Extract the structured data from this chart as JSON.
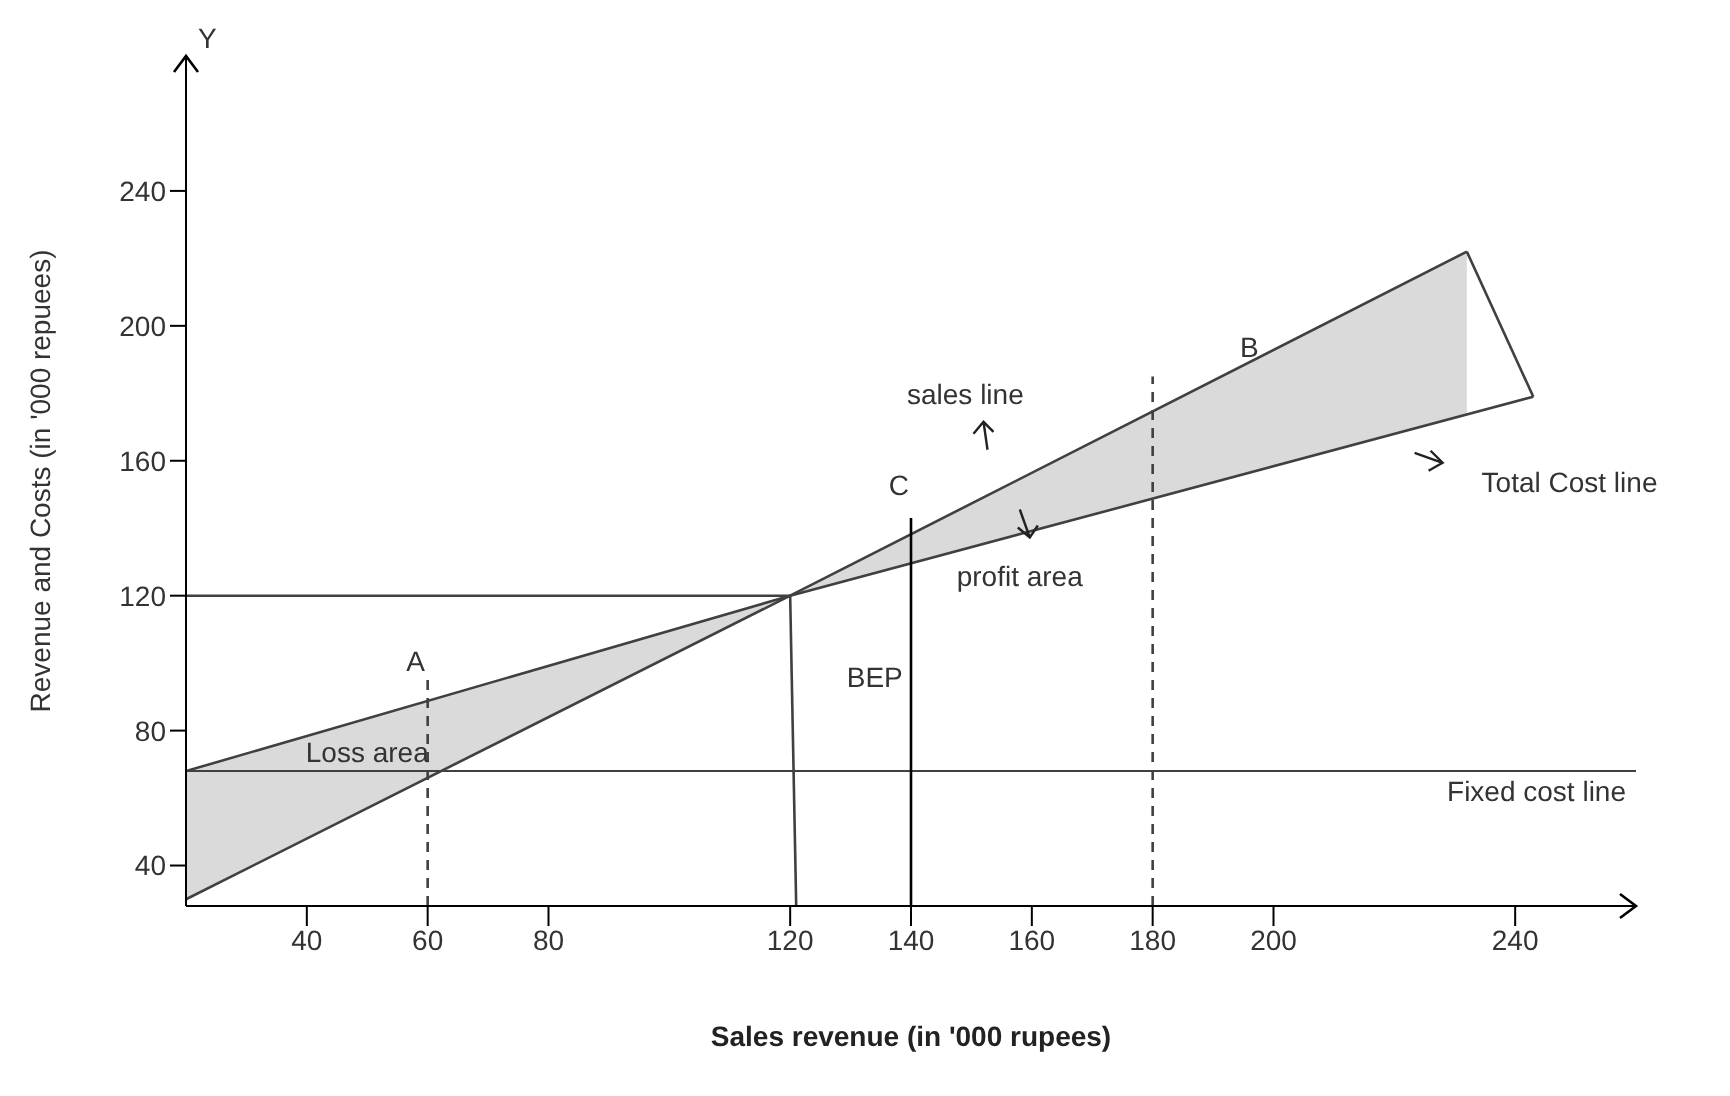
{
  "chart_data": {
    "type": "line",
    "xlabel": "Sales revenue (in '000 rupees)",
    "ylabel": "Revenue and Costs (in '000 repuees)",
    "xlim": [
      20,
      260
    ],
    "ylim": [
      28,
      280
    ],
    "xticks": [
      40,
      60,
      80,
      120,
      140,
      160,
      180,
      200,
      240
    ],
    "yticks": [
      40,
      80,
      120,
      160,
      200,
      240
    ],
    "marker": "none",
    "series": [
      {
        "color": "#404040",
        "x": [
          20,
          120,
          232
        ],
        "values": [
          30,
          120,
          222
        ],
        "lower": [
          68,
          120,
          174
        ],
        "upper": [
          30,
          120,
          222
        ]
      },
      {
        "color": "#404040",
        "x": [
          232,
          243
        ],
        "values": [
          222,
          179
        ]
      },
      {
        "color": "#404040",
        "x": [
          20,
          120,
          243
        ],
        "values": [
          68,
          120,
          179
        ]
      },
      {
        "color": "#404040",
        "x": [
          20,
          120
        ],
        "values": [
          120,
          120
        ]
      },
      {
        "color": "#404040",
        "x": [
          120,
          121
        ],
        "values": [
          120,
          28
        ]
      },
      {
        "color": "#000000",
        "x": [
          140,
          140
        ],
        "values": [
          28,
          143
        ]
      },
      {
        "color": "#404040",
        "x": [
          60,
          60
        ],
        "values": [
          28,
          97
        ],
        "line_style": "dashed"
      },
      {
        "color": "#404040",
        "x": [
          180,
          180
        ],
        "values": [
          28,
          185
        ],
        "line_style": "dashed"
      }
    ],
    "ref_lines": [
      {
        "axis": "y",
        "value": 68,
        "label": "Fixed cost line",
        "color": "#404040"
      }
    ],
    "annotations": [
      "Y",
      "A",
      "B",
      "C",
      "BEP",
      "Loss area",
      "sales line",
      "profit area",
      "Total Cost line"
    ]
  }
}
